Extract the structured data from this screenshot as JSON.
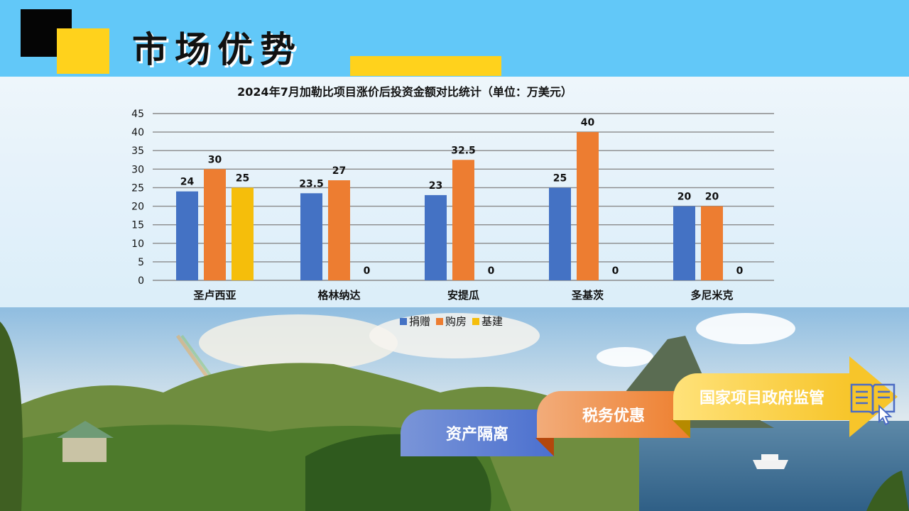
{
  "header": {
    "title": "市场优势"
  },
  "colors": {
    "header_bg": "#62c8f8",
    "accent_yellow": "#ffd21c",
    "accent_black": "#050505"
  },
  "chart_data": {
    "type": "bar",
    "title": "2024年7月加勒比项目涨价后投资金额对比统计（单位：万美元）",
    "categories": [
      "圣卢西亚",
      "格林纳达",
      "安提瓜",
      "圣基茨",
      "多尼米克"
    ],
    "series": [
      {
        "name": "捐赠",
        "color": "#4472c4",
        "values": [
          24,
          23.5,
          23,
          25,
          20
        ]
      },
      {
        "name": "购房",
        "color": "#ed7d31",
        "values": [
          30,
          27,
          32.5,
          40,
          20
        ]
      },
      {
        "name": "基建",
        "color": "#f5be0b",
        "values": [
          25,
          0,
          0,
          0,
          0
        ]
      }
    ],
    "ylim": [
      0,
      45
    ],
    "yticks": [
      0,
      5,
      10,
      15,
      20,
      25,
      30,
      35,
      40,
      45
    ],
    "grid": true,
    "legend": "bottom"
  },
  "advantages": [
    {
      "label": "资产隔离"
    },
    {
      "label": "税务优惠"
    },
    {
      "label": "国家项目政府监管"
    }
  ]
}
